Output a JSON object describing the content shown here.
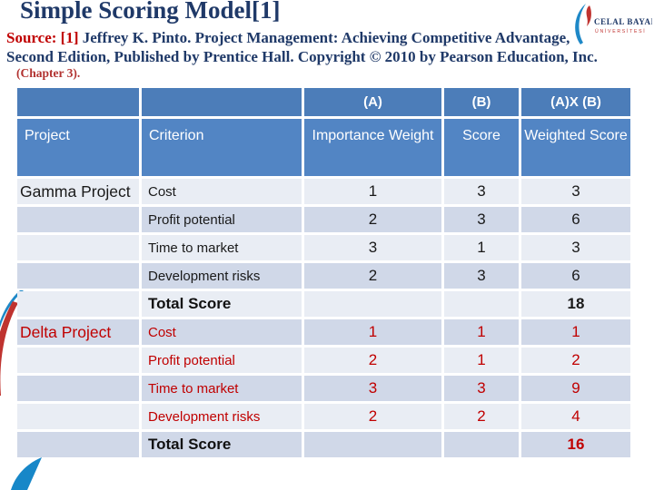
{
  "slide": {
    "title": "Simple Scoring Model[1]",
    "source_label": "Source:",
    "source_ref": "[1]",
    "source_line1": "Jeffrey K. Pinto. Project Management: Achieving Competitive Advantage,",
    "source_line2": "Second Edition, Published by Prentice Hall. Copyright © 2010 by Pearson Education, Inc.",
    "chapter": "(Chapter 3)."
  },
  "logo": {
    "name": "CELAL BAYAR",
    "subtitle": "ÜNİVERSİTESİ"
  },
  "colors": {
    "title_navy": "#1f3968",
    "accent_red": "#c00000",
    "header_blue_dark": "#4c7db9",
    "header_blue": "#5285c4",
    "band_light": "#e9edf4",
    "band_dark": "#d0d8e8",
    "swoosh_blue": "#1787c8"
  },
  "table": {
    "header_top": [
      "",
      "",
      "(A)",
      "(B)",
      "(A)X (B)"
    ],
    "header": [
      "Project",
      "Criterion",
      "Importance Weight",
      "Score",
      "Weighted Score"
    ],
    "rows": [
      {
        "project": "Gamma Project",
        "criterion": "Cost",
        "weight": "1",
        "score": "3",
        "weighted": "3",
        "red": false,
        "total": false
      },
      {
        "project": "",
        "criterion": "Profit potential",
        "weight": "2",
        "score": "3",
        "weighted": "6",
        "red": false,
        "total": false
      },
      {
        "project": "",
        "criterion": "Time to market",
        "weight": "3",
        "score": "1",
        "weighted": "3",
        "red": false,
        "total": false
      },
      {
        "project": "",
        "criterion": "Development risks",
        "weight": "2",
        "score": "3",
        "weighted": "6",
        "red": false,
        "total": false
      },
      {
        "project": "",
        "criterion": "Total Score",
        "weight": "",
        "score": "",
        "weighted": "18",
        "red": false,
        "total": true
      },
      {
        "project": "Delta Project",
        "criterion": "Cost",
        "weight": "1",
        "score": "1",
        "weighted": "1",
        "red": true,
        "total": false
      },
      {
        "project": "",
        "criterion": "Profit potential",
        "weight": "2",
        "score": "1",
        "weighted": "2",
        "red": true,
        "total": false
      },
      {
        "project": "",
        "criterion": "Time to market",
        "weight": "3",
        "score": "3",
        "weighted": "9",
        "red": true,
        "total": false
      },
      {
        "project": "",
        "criterion": "Development risks",
        "weight": "2",
        "score": "2",
        "weighted": "4",
        "red": true,
        "total": false
      },
      {
        "project": "",
        "criterion": "Total Score",
        "weight": "",
        "score": "",
        "weighted": "16",
        "red": true,
        "total": true
      }
    ]
  }
}
